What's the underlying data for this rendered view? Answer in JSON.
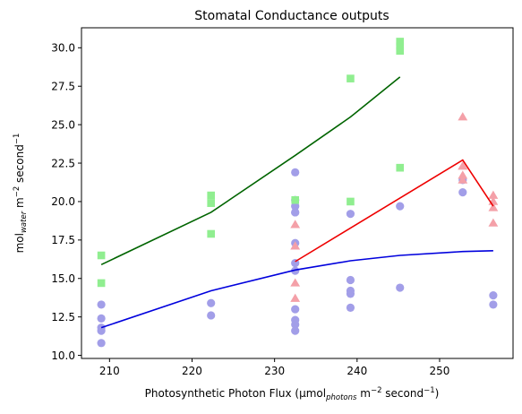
{
  "chart_data": {
    "type": "scatter",
    "title": "Stomatal Conductance outputs",
    "xlabel": {
      "parts": [
        {
          "text": "Photosynthetic Photon Flux (μmol"
        },
        {
          "text": "photons",
          "sub": true
        },
        {
          "text": " m"
        },
        {
          "text": "−2",
          "sup": true
        },
        {
          "text": " second"
        },
        {
          "text": "−1",
          "sup": true
        },
        {
          "text": ")"
        }
      ]
    },
    "ylabel": {
      "parts": [
        {
          "text": "mol"
        },
        {
          "text": "water",
          "sub": true
        },
        {
          "text": " m"
        },
        {
          "text": "−2",
          "sup": true
        },
        {
          "text": " second"
        },
        {
          "text": "−1",
          "sup": true
        }
      ]
    },
    "xlim": [
      206.6,
      258.9
    ],
    "ylim": [
      9.8,
      31.3
    ],
    "xticks": [
      210,
      220,
      230,
      240,
      250
    ],
    "yticks": [
      10.0,
      12.5,
      15.0,
      17.5,
      20.0,
      22.5,
      25.0,
      27.5,
      30.0
    ],
    "ytick_labels": [
      "10.0",
      "12.5",
      "15.0",
      "17.5",
      "20.0",
      "22.5",
      "25.0",
      "27.5",
      "30.0"
    ],
    "grid": false,
    "series": [
      {
        "kind": "line",
        "color": "#0000dd",
        "x": [
          209,
          222.3,
          232.5,
          239.2,
          245.2,
          252.8,
          256.5
        ],
        "y": [
          11.8,
          14.2,
          15.55,
          16.15,
          16.5,
          16.75,
          16.8
        ]
      },
      {
        "kind": "line",
        "color": "#006400",
        "x": [
          209,
          222.3,
          232.5,
          239.2,
          245.2
        ],
        "y": [
          15.9,
          19.3,
          23.0,
          25.5,
          28.1
        ]
      },
      {
        "kind": "line",
        "color": "#ee0000",
        "x": [
          232.5,
          252.8,
          256.5
        ],
        "y": [
          16.1,
          22.7,
          19.7
        ]
      },
      {
        "kind": "scatter",
        "marker": "circle",
        "color": "#a29ee8",
        "x": [
          209,
          209,
          209,
          209,
          209,
          222.3,
          222.3,
          232.5,
          232.5,
          232.5,
          232.5,
          232.5,
          232.5,
          232.5,
          232.5,
          232.5,
          232.5,
          232.5,
          232.5,
          239.2,
          239.2,
          239.2,
          239.2,
          239.2,
          245.2,
          245.2,
          252.8,
          252.8,
          256.5,
          256.5
        ],
        "y": [
          10.8,
          11.6,
          11.8,
          12.4,
          13.3,
          12.6,
          13.4,
          11.6,
          12.0,
          12.3,
          13.0,
          15.5,
          17.3,
          19.3,
          19.3,
          19.7,
          20.1,
          21.9,
          16.0,
          13.1,
          14.0,
          14.2,
          14.9,
          19.2,
          14.4,
          19.7,
          20.6,
          21.4,
          13.3,
          13.9
        ]
      },
      {
        "kind": "scatter",
        "marker": "square",
        "color": "#90ee90",
        "x": [
          209,
          209,
          222.3,
          222.3,
          222.3,
          232.5,
          239.2,
          239.2,
          245.2,
          245.2,
          245.2,
          245.2
        ],
        "y": [
          14.7,
          16.5,
          17.9,
          19.9,
          20.4,
          20.1,
          20.0,
          28.0,
          22.2,
          29.8,
          30.1,
          30.4
        ]
      },
      {
        "kind": "scatter",
        "marker": "triangle",
        "color": "#f4a0a8",
        "x": [
          232.5,
          232.5,
          232.5,
          232.5,
          252.8,
          252.8,
          252.8,
          252.8,
          252.8,
          256.5,
          256.5,
          256.5,
          256.5
        ],
        "y": [
          13.7,
          14.7,
          17.1,
          18.5,
          21.4,
          21.7,
          22.3,
          22.3,
          25.5,
          18.6,
          19.6,
          20.0,
          20.4
        ]
      }
    ]
  }
}
